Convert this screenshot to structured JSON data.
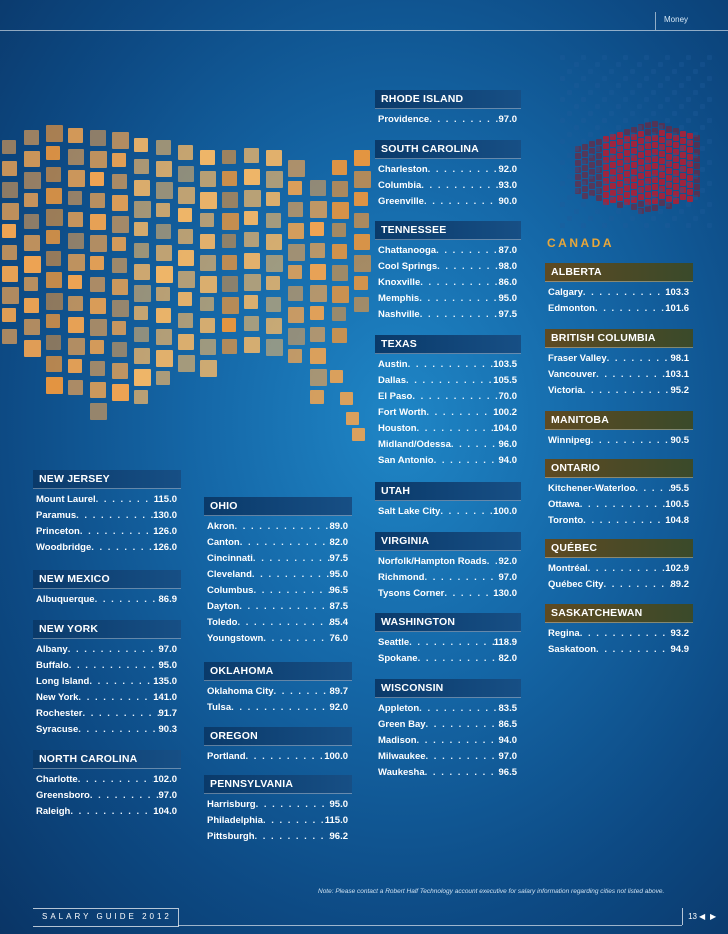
{
  "header": {
    "section": "Money"
  },
  "colors": {
    "us_header": "#0f4c85",
    "canada_header": "#5e4a22",
    "canada_title": "#e9a73a",
    "map_tile": "#f0a452"
  },
  "canada_title": "CANADA",
  "regions": {
    "rhode_island": {
      "name": "RHODE ISLAND",
      "rows": [
        {
          "city": "Providence",
          "value": "97.0"
        }
      ]
    },
    "south_carolina": {
      "name": "SOUTH CAROLINA",
      "rows": [
        {
          "city": "Charleston",
          "value": "92.0"
        },
        {
          "city": "Columbia",
          "value": "93.0"
        },
        {
          "city": "Greenville",
          "value": "90.0"
        }
      ]
    },
    "tennessee": {
      "name": "TENNESSEE",
      "rows": [
        {
          "city": "Chattanooga",
          "value": "87.0"
        },
        {
          "city": "Cool Springs",
          "value": "98.0"
        },
        {
          "city": "Knoxville",
          "value": "86.0"
        },
        {
          "city": "Memphis",
          "value": "95.0"
        },
        {
          "city": "Nashville",
          "value": "97.5"
        }
      ]
    },
    "texas": {
      "name": "TEXAS",
      "rows": [
        {
          "city": "Austin",
          "value": "103.5"
        },
        {
          "city": "Dallas",
          "value": "105.5"
        },
        {
          "city": "El Paso",
          "value": "70.0"
        },
        {
          "city": "Fort Worth",
          "value": "100.2"
        },
        {
          "city": "Houston",
          "value": "104.0"
        },
        {
          "city": "Midland/Odessa",
          "value": "96.0"
        },
        {
          "city": "San Antonio",
          "value": "94.0"
        }
      ]
    },
    "utah": {
      "name": "UTAH",
      "rows": [
        {
          "city": "Salt Lake City",
          "value": "100.0"
        }
      ]
    },
    "virginia": {
      "name": "VIRGINIA",
      "rows": [
        {
          "city": "Norfolk/Hampton Roads",
          "value": "92.0"
        },
        {
          "city": "Richmond",
          "value": "97.0"
        },
        {
          "city": "Tysons Corner",
          "value": "130.0"
        }
      ]
    },
    "washington": {
      "name": "WASHINGTON",
      "rows": [
        {
          "city": "Seattle",
          "value": "118.9"
        },
        {
          "city": "Spokane",
          "value": "82.0"
        }
      ]
    },
    "wisconsin": {
      "name": "WISCONSIN",
      "rows": [
        {
          "city": "Appleton",
          "value": "83.5"
        },
        {
          "city": "Green Bay",
          "value": "86.5"
        },
        {
          "city": "Madison",
          "value": "94.0"
        },
        {
          "city": "Milwaukee",
          "value": "97.0"
        },
        {
          "city": "Waukesha",
          "value": "96.5"
        }
      ]
    },
    "new_jersey": {
      "name": "NEW JERSEY",
      "rows": [
        {
          "city": "Mount Laurel",
          "value": "115.0"
        },
        {
          "city": "Paramus",
          "value": "130.0"
        },
        {
          "city": "Princeton",
          "value": "126.0"
        },
        {
          "city": "Woodbridge",
          "value": "126.0"
        }
      ]
    },
    "new_mexico": {
      "name": "NEW MEXICO",
      "rows": [
        {
          "city": "Albuquerque",
          "value": "86.9"
        }
      ]
    },
    "new_york": {
      "name": "NEW YORK",
      "rows": [
        {
          "city": "Albany",
          "value": "97.0"
        },
        {
          "city": "Buffalo",
          "value": "95.0"
        },
        {
          "city": "Long Island",
          "value": "135.0"
        },
        {
          "city": "New York",
          "value": "141.0"
        },
        {
          "city": "Rochester",
          "value": "91.7"
        },
        {
          "city": "Syracuse",
          "value": "90.3"
        }
      ]
    },
    "north_carolina": {
      "name": "NORTH CAROLINA",
      "rows": [
        {
          "city": "Charlotte",
          "value": "102.0"
        },
        {
          "city": "Greensboro",
          "value": "97.0"
        },
        {
          "city": "Raleigh",
          "value": "104.0"
        }
      ]
    },
    "ohio": {
      "name": "OHIO",
      "rows": [
        {
          "city": "Akron",
          "value": "89.0"
        },
        {
          "city": "Canton",
          "value": "82.0"
        },
        {
          "city": "Cincinnati",
          "value": "97.5"
        },
        {
          "city": "Cleveland",
          "value": "95.0"
        },
        {
          "city": "Columbus",
          "value": "96.5"
        },
        {
          "city": "Dayton",
          "value": "87.5"
        },
        {
          "city": "Toledo",
          "value": "85.4"
        },
        {
          "city": "Youngstown",
          "value": "76.0"
        }
      ]
    },
    "oklahoma": {
      "name": "OKLAHOMA",
      "rows": [
        {
          "city": "Oklahoma City",
          "value": "89.7"
        },
        {
          "city": "Tulsa",
          "value": "92.0"
        }
      ]
    },
    "oregon": {
      "name": "OREGON",
      "rows": [
        {
          "city": "Portland",
          "value": "100.0"
        }
      ]
    },
    "pennsylvania": {
      "name": "PENNSYLVANIA",
      "rows": [
        {
          "city": "Harrisburg",
          "value": "95.0"
        },
        {
          "city": "Philadelphia",
          "value": "115.0"
        },
        {
          "city": "Pittsburgh",
          "value": "96.2"
        }
      ]
    },
    "alberta": {
      "name": "ALBERTA",
      "rows": [
        {
          "city": "Calgary",
          "value": "103.3"
        },
        {
          "city": "Edmonton",
          "value": "101.6"
        }
      ]
    },
    "british_columbia": {
      "name": "BRITISH COLUMBIA",
      "rows": [
        {
          "city": "Fraser Valley",
          "value": "98.1"
        },
        {
          "city": "Vancouver",
          "value": "103.1"
        },
        {
          "city": "Victoria",
          "value": "95.2"
        }
      ]
    },
    "manitoba": {
      "name": "MANITOBA",
      "rows": [
        {
          "city": "Winnipeg",
          "value": "90.5"
        }
      ]
    },
    "ontario": {
      "name": "ONTARIO",
      "rows": [
        {
          "city": "Kitchener-Waterloo",
          "value": "95.5"
        },
        {
          "city": "Ottawa",
          "value": "100.5"
        },
        {
          "city": "Toronto",
          "value": "104.8"
        }
      ]
    },
    "quebec": {
      "name": "QUÉBEC",
      "rows": [
        {
          "city": "Montréal",
          "value": "102.9"
        },
        {
          "city": "Québec City",
          "value": "89.2"
        }
      ]
    },
    "saskatchewan": {
      "name": "SASKATCHEWAN",
      "rows": [
        {
          "city": "Regina",
          "value": "93.2"
        },
        {
          "city": "Saskatoon",
          "value": "94.9"
        }
      ]
    }
  },
  "note": "Note: Please contact a Robert Half Technology account executive for salary information regarding cities not listed above.",
  "footer": {
    "guide": "SALARY GUIDE 2012",
    "page": "13"
  }
}
